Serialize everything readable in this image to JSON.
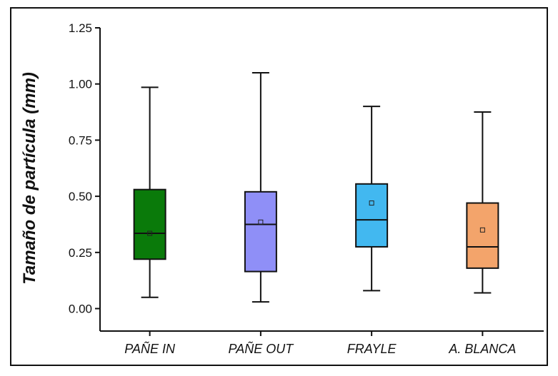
{
  "chart_data": {
    "type": "box",
    "ylabel": "Tamaño de partícula (mm)",
    "xlabel": "",
    "ylim": [
      -0.1,
      1.25
    ],
    "yticks": [
      0.0,
      0.25,
      0.5,
      0.75,
      1.0,
      1.25
    ],
    "ytick_labels": [
      "0.00",
      "0.25",
      "0.50",
      "0.75",
      "1.00",
      "1.25"
    ],
    "categories": [
      "PAÑE IN",
      "PAÑE OUT",
      "FRAYLE",
      "A. BLANCA"
    ],
    "boxes": [
      {
        "category": "PAÑE IN",
        "whisker_low": 0.05,
        "q1": 0.22,
        "median": 0.335,
        "q3": 0.53,
        "whisker_high": 0.985,
        "mean": 0.335,
        "color": "#0a7a0a"
      },
      {
        "category": "PAÑE OUT",
        "whisker_low": 0.03,
        "q1": 0.165,
        "median": 0.375,
        "q3": 0.52,
        "whisker_high": 1.05,
        "mean": 0.385,
        "color": "#8f8ff7"
      },
      {
        "category": "FRAYLE",
        "whisker_low": 0.08,
        "q1": 0.275,
        "median": 0.395,
        "q3": 0.555,
        "whisker_high": 0.9,
        "mean": 0.47,
        "color": "#42b8f0"
      },
      {
        "category": "A. BLANCA",
        "whisker_low": 0.07,
        "q1": 0.18,
        "median": 0.275,
        "q3": 0.47,
        "whisker_high": 0.875,
        "mean": 0.35,
        "color": "#f3a46b"
      }
    ],
    "grid": false,
    "legend": "none"
  }
}
